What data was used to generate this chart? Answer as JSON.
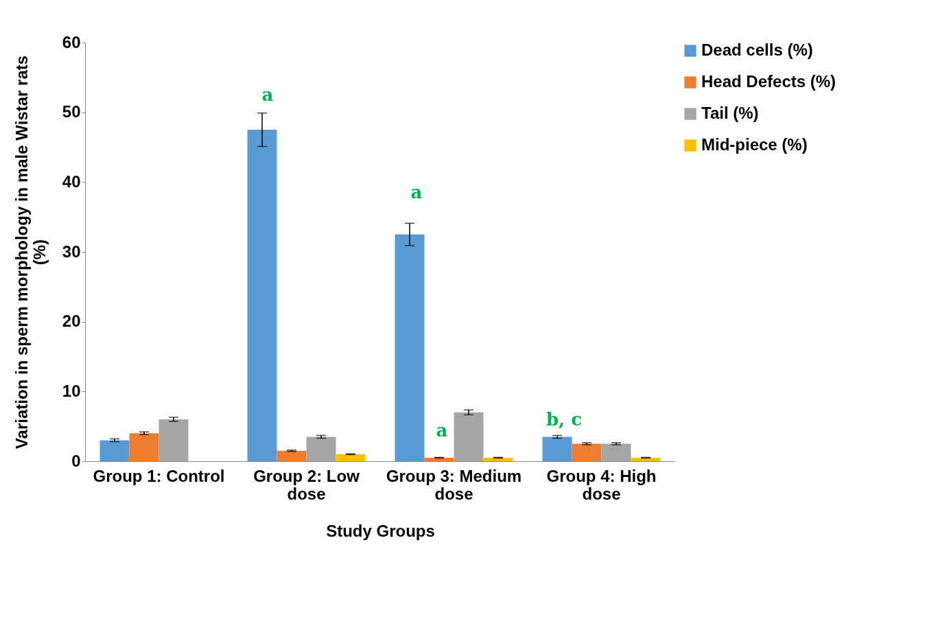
{
  "chart_data": {
    "type": "bar",
    "xlabel": "Study Groups",
    "ylabel": "Variation in  sperm morphology in male Wistar rats (%)",
    "categories": [
      "Group 1: Control",
      "Group 2: Low dose",
      "Group 3: Medium dose",
      "Group 4: High dose"
    ],
    "series": [
      {
        "name": "Dead cells (%)",
        "color": "#5b9bd5",
        "values": [
          3.0,
          47.5,
          32.5,
          3.5
        ],
        "errors": [
          0.2,
          2.4,
          1.6,
          0.2
        ]
      },
      {
        "name": "Head Defects (%)",
        "color": "#ed7d31",
        "values": [
          4.0,
          1.5,
          0.5,
          2.5
        ],
        "errors": [
          0.2,
          0.1,
          0.05,
          0.15
        ]
      },
      {
        "name": "Tail (%)",
        "color": "#a5a5a5",
        "values": [
          6.0,
          3.5,
          7.0,
          2.5
        ],
        "errors": [
          0.3,
          0.2,
          0.35,
          0.15
        ]
      },
      {
        "name": "Mid-piece (%)",
        "color": "#ffc000",
        "values": [
          0.0,
          1.0,
          0.5,
          0.5
        ],
        "errors": [
          null,
          0.05,
          0.05,
          0.05
        ]
      }
    ],
    "ylim": [
      0,
      60
    ],
    "yticks": [
      0,
      10,
      20,
      30,
      40,
      50,
      60
    ],
    "grid": false,
    "legend": "right",
    "annotations": [
      "a",
      "a",
      "a",
      "b, c"
    ]
  }
}
